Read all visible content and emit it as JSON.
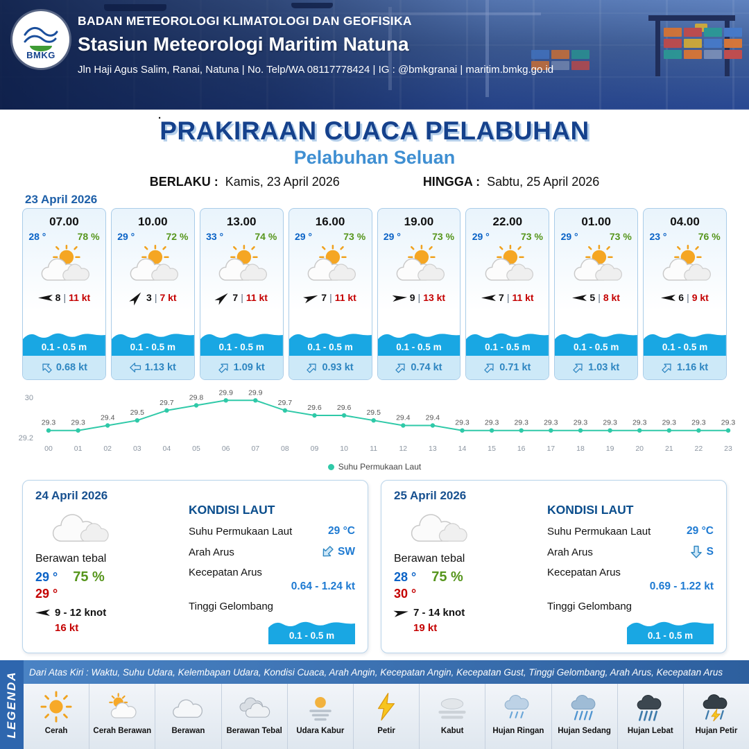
{
  "header": {
    "logo_text": "BMKG",
    "org_line": "BADAN METEOROLOGI KLIMATOLOGI DAN GEOFISIKA",
    "station_line": "Stasiun Meteorologi Maritim Natuna",
    "contact_line": "Jln Haji Agus Salim, Ranai, Natuna  | No. Telp/WA 08117778424 | IG : @bmkgranai | maritim.bmkg.go.id"
  },
  "title": {
    "main": "PRAKIRAAN CUACA PELABUHAN",
    "subtitle": "Pelabuhan Seluan",
    "valid_from_label": "BERLAKU :",
    "valid_from": "Kamis, 23 April 2026",
    "valid_to_label": "HINGGA :",
    "valid_to": "Sabtu, 25 April 2026",
    "stray_dot": "."
  },
  "ui": {
    "pipe": "|"
  },
  "forecast": {
    "date": "23 April 2026",
    "cards": [
      {
        "time": "07.00",
        "temp": "28 °",
        "humidity": "78 %",
        "wind_speed": "8",
        "gust": "11 kt",
        "wave": "0.1 - 0.5 m",
        "current_speed": "0.68 kt",
        "wind_deg": 180,
        "current_deg": -45
      },
      {
        "time": "10.00",
        "temp": "29 °",
        "humidity": "72 %",
        "wind_speed": "3",
        "gust": "7 kt",
        "wave": "0.1 - 0.5 m",
        "current_speed": "1.13 kt",
        "wind_deg": -50,
        "current_deg": -90
      },
      {
        "time": "13.00",
        "temp": "33 °",
        "humidity": "74 %",
        "wind_speed": "7",
        "gust": "11 kt",
        "wave": "0.1 - 0.5 m",
        "current_speed": "1.09 kt",
        "wind_deg": -40,
        "current_deg": 45
      },
      {
        "time": "16.00",
        "temp": "29 °",
        "humidity": "73 %",
        "wind_speed": "7",
        "gust": "11 kt",
        "wave": "0.1 - 0.5 m",
        "current_speed": "0.93 kt",
        "wind_deg": -20,
        "current_deg": 45
      },
      {
        "time": "19.00",
        "temp": "29 °",
        "humidity": "73 %",
        "wind_speed": "9",
        "gust": "13 kt",
        "wave": "0.1 - 0.5 m",
        "current_speed": "0.74 kt",
        "wind_deg": -5,
        "current_deg": 45
      },
      {
        "time": "22.00",
        "temp": "29 °",
        "humidity": "73 %",
        "wind_speed": "7",
        "gust": "11 kt",
        "wave": "0.1 - 0.5 m",
        "current_speed": "0.71 kt",
        "wind_deg": 180,
        "current_deg": 45
      },
      {
        "time": "01.00",
        "temp": "29 °",
        "humidity": "73 %",
        "wind_speed": "5",
        "gust": "8 kt",
        "wave": "0.1 - 0.5 m",
        "current_speed": "1.03 kt",
        "wind_deg": 180,
        "current_deg": 45
      },
      {
        "time": "04.00",
        "temp": "23 °",
        "humidity": "76 %",
        "wind_speed": "6",
        "gust": "9 kt",
        "wave": "0.1 - 0.5 m",
        "current_speed": "1.16 kt",
        "wind_deg": 180,
        "current_deg": 45
      }
    ]
  },
  "chart_data": {
    "type": "line",
    "title": "",
    "xlabel": "",
    "ylabel": "",
    "series_name": "Suhu Permukaan Laut",
    "x": [
      "00",
      "01",
      "02",
      "03",
      "04",
      "05",
      "06",
      "07",
      "08",
      "09",
      "10",
      "11",
      "12",
      "13",
      "14",
      "15",
      "16",
      "17",
      "18",
      "19",
      "20",
      "21",
      "22",
      "23"
    ],
    "values": [
      29.3,
      29.3,
      29.4,
      29.5,
      29.7,
      29.8,
      29.9,
      29.9,
      29.7,
      29.6,
      29.6,
      29.5,
      29.4,
      29.4,
      29.3,
      29.3,
      29.3,
      29.3,
      29.3,
      29.3,
      29.3,
      29.3,
      29.3,
      29.3
    ],
    "ylim": [
      29.2,
      30
    ],
    "y_ticks": [
      "30",
      "29.2"
    ],
    "line_color": "#2fc9a8",
    "grid": false,
    "legend_position": "bottom"
  },
  "daily": [
    {
      "date": "24 April 2026",
      "condition": "Berawan tebal",
      "temp_blue": "29 °",
      "humidity": "75 %",
      "temp_red": "29 °",
      "wind_range": "9  - 12 knot",
      "gust": "16 kt",
      "wind_deg": 180,
      "sea": {
        "heading": "KONDISI LAUT",
        "sst_label": "Suhu Permukaan Laut",
        "sst_value": "29 °C",
        "current_dir_label": "Arah Arus",
        "current_dir": "SW",
        "current_dir_deg": 225,
        "current_speed_label": "Kecepatan Arus",
        "current_speed": "0.64  - 1.24 kt",
        "wave_label": "Tinggi Gelombang",
        "wave": "0.1 - 0.5 m"
      }
    },
    {
      "date": "25 April 2026",
      "condition": "Berawan tebal",
      "temp_blue": "28 °",
      "humidity": "75 %",
      "temp_red": "30 °",
      "wind_range": "7  - 14 knot",
      "gust": "19 kt",
      "wind_deg": -10,
      "sea": {
        "heading": "KONDISI LAUT",
        "sst_label": "Suhu Permukaan Laut",
        "sst_value": "29 °C",
        "current_dir_label": "Arah Arus",
        "current_dir": "S",
        "current_dir_deg": 180,
        "current_speed_label": "Kecepatan Arus",
        "current_speed": "0.69  - 1.22 kt",
        "wave_label": "Tinggi Gelombang",
        "wave": "0.1 - 0.5 m"
      }
    }
  ],
  "legend": {
    "vertical_label": "LEGENDA",
    "note": "Dari Atas Kiri : Waktu, Suhu Udara, Kelembapan Udara, Kondisi Cuaca, Arah Angin, Kecepatan Angin, Kecepatan Gust, Tinggi Gelombang, Arah Arus, Kecepatan Arus",
    "items": [
      {
        "label": "Cerah",
        "icon": "sun"
      },
      {
        "label": "Cerah Berawan",
        "icon": "sun-cloud"
      },
      {
        "label": "Berawan",
        "icon": "cloud"
      },
      {
        "label": "Berawan Tebal",
        "icon": "cloud-thick"
      },
      {
        "label": "Udara Kabur",
        "icon": "haze"
      },
      {
        "label": "Petir",
        "icon": "lightning"
      },
      {
        "label": "Kabut",
        "icon": "fog"
      },
      {
        "label": "Hujan Ringan",
        "icon": "rain-light"
      },
      {
        "label": "Hujan Sedang",
        "icon": "rain-medium"
      },
      {
        "label": "Hujan Lebat",
        "icon": "rain-heavy"
      },
      {
        "label": "Hujan Petir",
        "icon": "thunderstorm"
      }
    ]
  }
}
